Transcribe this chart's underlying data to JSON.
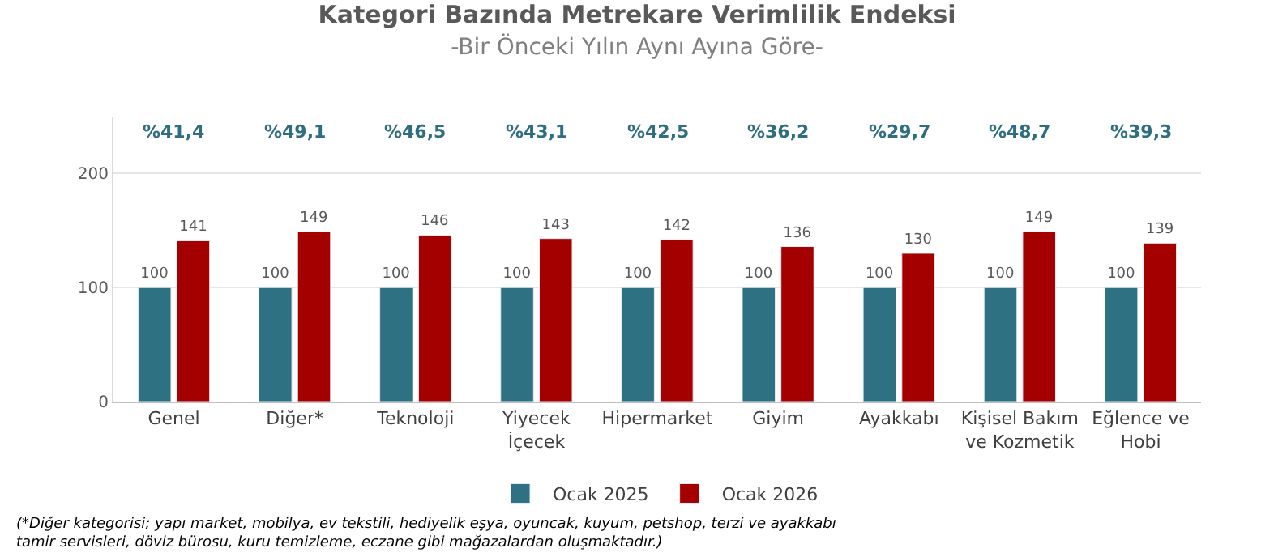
{
  "chart_data": {
    "type": "bar",
    "title": "Kategori Bazında Metrekare Verimlilik Endeksi",
    "subtitle": "-Bir Önceki Yılın Aynı Ayına Göre-",
    "categories": [
      "Genel",
      "Diğer*",
      "Teknoloji",
      "Yiyecek İçecek",
      "Hipermarket",
      "Giyim",
      "Ayakkabı",
      "Kişisel Bakım ve Kozmetik",
      "Eğlence ve Hobi"
    ],
    "series": [
      {
        "name": "Ocak 2025",
        "color": "#2e7182",
        "values": [
          100,
          100,
          100,
          100,
          100,
          100,
          100,
          100,
          100
        ]
      },
      {
        "name": "Ocak 2026",
        "color": "#a50000",
        "values": [
          141,
          149,
          146,
          143,
          142,
          136,
          130,
          149,
          139
        ]
      }
    ],
    "ylim": [
      0,
      250
    ],
    "yticks": [
      0,
      100,
      200
    ],
    "grid": "y",
    "legend": "bottom",
    "data_labels": true,
    "annotations": [
      "%41,4",
      "%49,1",
      "%46,5",
      "%43,1",
      "%42,5",
      "%36,2",
      "%29,7",
      "%48,7",
      "%39,3",
      "(*Diğer kategorisi; yapı market, mobilya, ev tekstili, hediyelik eşya, oyuncak, kuyum, petshop, terzi ve ayakkabı tamir servisleri, döviz bürosu, kuru temizleme, eczane gibi mağazalardan oluşmaktadır.)"
    ]
  }
}
